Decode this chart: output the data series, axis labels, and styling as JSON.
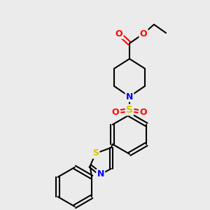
{
  "bg_color": "#ebebeb",
  "bond_color": "#000000",
  "bond_width": 1.5,
  "atom_colors": {
    "O": "#ff0000",
    "N": "#0000ff",
    "S": "#cccc00",
    "S_so2": "#cccc00",
    "C": "#000000"
  },
  "font_size": 9,
  "font_size_small": 7.5
}
